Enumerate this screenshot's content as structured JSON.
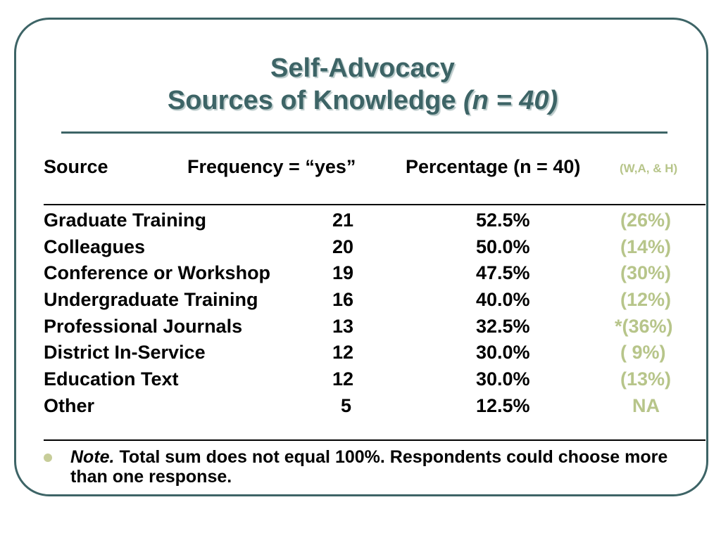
{
  "title": {
    "line1": "Self-Advocacy",
    "line2_main": "Sources of Knowledge",
    "line2_sample": "(n = 40)"
  },
  "table": {
    "headers": {
      "source": "Source",
      "frequency": "Frequency = “yes”",
      "percentage": "Percentage (n = 40)",
      "comparison": "(W,A, & H)"
    },
    "rows": [
      {
        "source": "Graduate Training",
        "frequency": "21",
        "percentage": "52.5%",
        "comparison": "(26%)"
      },
      {
        "source": "Colleagues",
        "frequency": "20",
        "percentage": "50.0%",
        "comparison": "(14%)"
      },
      {
        "source": "Conference or Workshop",
        "frequency": "19",
        "percentage": "47.5%",
        "comparison": "(30%)"
      },
      {
        "source": "Undergraduate Training",
        "frequency": "16",
        "percentage": "40.0%",
        "comparison": "(12%)"
      },
      {
        "source": "Professional Journals",
        "frequency": "13",
        "percentage": "32.5%",
        "comparison": "*(36%)"
      },
      {
        "source": "District In-Service",
        "frequency": "12",
        "percentage": "30.0%",
        "comparison": "( 9%)"
      },
      {
        "source": "Education Text",
        "frequency": "12",
        "percentage": "30.0%",
        "comparison": "(13%)"
      },
      {
        "source": "Other",
        "frequency": "5",
        "percentage": "12.5%",
        "comparison": "NA"
      }
    ]
  },
  "note": {
    "label": "Note.",
    "text": " Total sum does not equal 100%. Respondents could choose more than one response."
  },
  "colors": {
    "frame": "#3d6466",
    "accent": "#b7c58a"
  }
}
